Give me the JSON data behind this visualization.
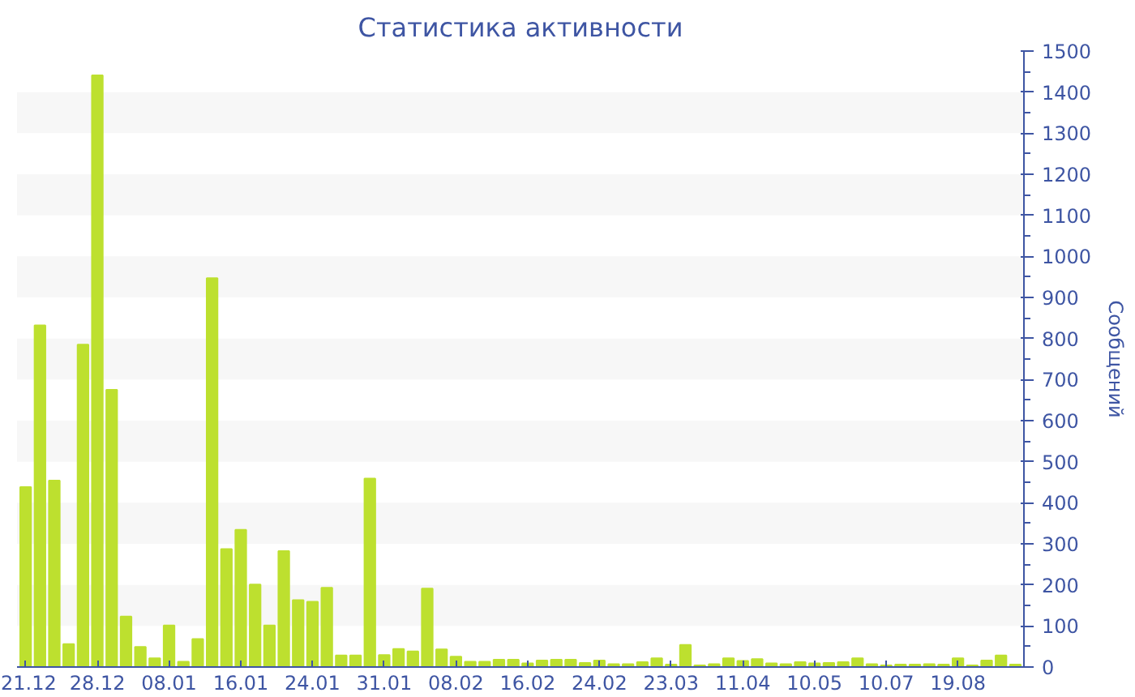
{
  "chart_data": {
    "type": "bar",
    "title": "Статистика активности",
    "ylabel": "Сообщений",
    "categories": [
      "21.12",
      null,
      null,
      null,
      null,
      "28.12",
      null,
      null,
      null,
      null,
      "08.01",
      null,
      null,
      null,
      null,
      "16.01",
      null,
      null,
      null,
      null,
      "24.01",
      null,
      null,
      null,
      null,
      "31.01",
      null,
      null,
      null,
      null,
      "08.02",
      null,
      null,
      null,
      null,
      "16.02",
      null,
      null,
      null,
      null,
      "24.02",
      null,
      null,
      null,
      null,
      "23.03",
      null,
      null,
      null,
      null,
      "11.04",
      null,
      null,
      null,
      null,
      "10.05",
      null,
      null,
      null,
      null,
      "10.07",
      null,
      null,
      null,
      null,
      "19.08",
      null,
      null,
      null,
      null
    ],
    "values": [
      438,
      832,
      454,
      56,
      785,
      1441,
      675,
      123,
      49,
      21,
      101,
      13,
      68,
      947,
      287,
      334,
      201,
      101,
      282,
      163,
      159,
      193,
      28,
      28,
      459,
      29,
      44,
      38,
      191,
      43,
      25,
      13,
      13,
      18,
      18,
      9,
      16,
      18,
      18,
      10,
      16,
      7,
      7,
      12,
      21,
      6,
      54,
      4,
      7,
      21,
      15,
      19,
      9,
      7,
      12,
      9,
      10,
      12,
      21,
      7,
      4,
      6,
      6,
      7,
      6,
      21,
      4,
      16,
      28,
      6
    ],
    "color": "#bde02f",
    "ylim": [
      0,
      1500
    ],
    "yticks": [
      0,
      100,
      200,
      300,
      400,
      500,
      600,
      700,
      800,
      900,
      1000,
      1100,
      1200,
      1300,
      1400,
      1500
    ]
  }
}
